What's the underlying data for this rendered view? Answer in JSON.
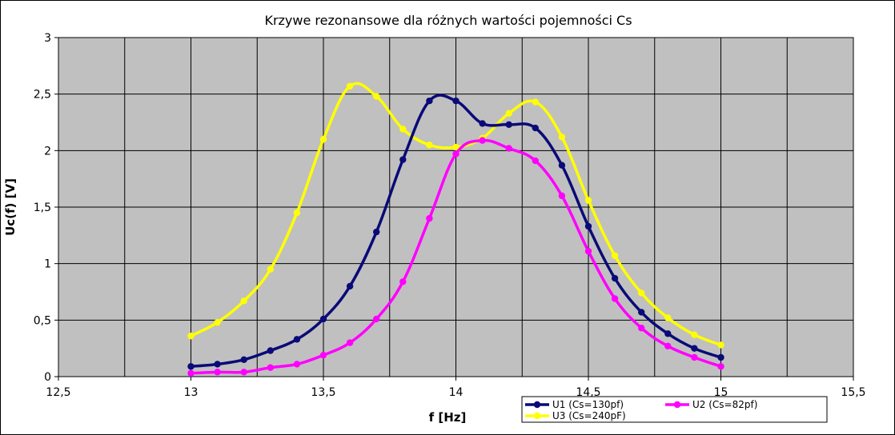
{
  "chart_data": {
    "type": "line",
    "title": "Krzywe rezonansowe dla różnych wartości pojemności Cs",
    "xlabel": "f [Hz]",
    "ylabel": "Uc(f) [V]",
    "xlim": [
      12.5,
      15.5
    ],
    "ylim": [
      0,
      3
    ],
    "x_ticks": [
      12.5,
      13,
      13.5,
      14,
      14.5,
      15,
      15.5
    ],
    "x_tick_labels": [
      "12,5",
      "13",
      "13,5",
      "14",
      "14,5",
      "15",
      "15,5"
    ],
    "y_ticks": [
      0,
      0.5,
      1,
      1.5,
      2,
      2.5,
      3
    ],
    "y_tick_labels": [
      "0",
      "0,5",
      "1",
      "1,5",
      "2",
      "2,5",
      "3"
    ],
    "grid": true,
    "legend_position": "bottom-right",
    "x": [
      13.0,
      13.1,
      13.2,
      13.3,
      13.4,
      13.5,
      13.6,
      13.7,
      13.8,
      13.9,
      14.0,
      14.1,
      14.2,
      14.3,
      14.4,
      14.5,
      14.6,
      14.7,
      14.8,
      14.9,
      15.0
    ],
    "series": [
      {
        "name": "U1 (Cs=130pf)",
        "color": "#0a0a78",
        "values": [
          0.09,
          0.11,
          0.15,
          0.23,
          0.33,
          0.51,
          0.8,
          1.28,
          1.92,
          2.44,
          2.44,
          2.24,
          2.23,
          2.2,
          1.87,
          1.33,
          0.87,
          0.57,
          0.38,
          0.25,
          0.17
        ]
      },
      {
        "name": "U2 (Cs=82pf)",
        "color": "#ff00ff",
        "values": [
          0.03,
          0.04,
          0.04,
          0.08,
          0.11,
          0.19,
          0.3,
          0.51,
          0.84,
          1.4,
          1.97,
          2.09,
          2.02,
          1.91,
          1.6,
          1.11,
          0.69,
          0.43,
          0.27,
          0.17,
          0.09
        ]
      },
      {
        "name": "U3 (Cs=240pF)",
        "color": "#ffff00",
        "values": [
          0.36,
          0.48,
          0.67,
          0.95,
          1.45,
          2.1,
          2.57,
          2.48,
          2.19,
          2.05,
          2.03,
          2.11,
          2.33,
          2.43,
          2.12,
          1.56,
          1.07,
          0.74,
          0.52,
          0.37,
          0.28
        ]
      }
    ]
  },
  "colors": {
    "plot_background": "#c0c0c0",
    "grid": "#000000"
  }
}
